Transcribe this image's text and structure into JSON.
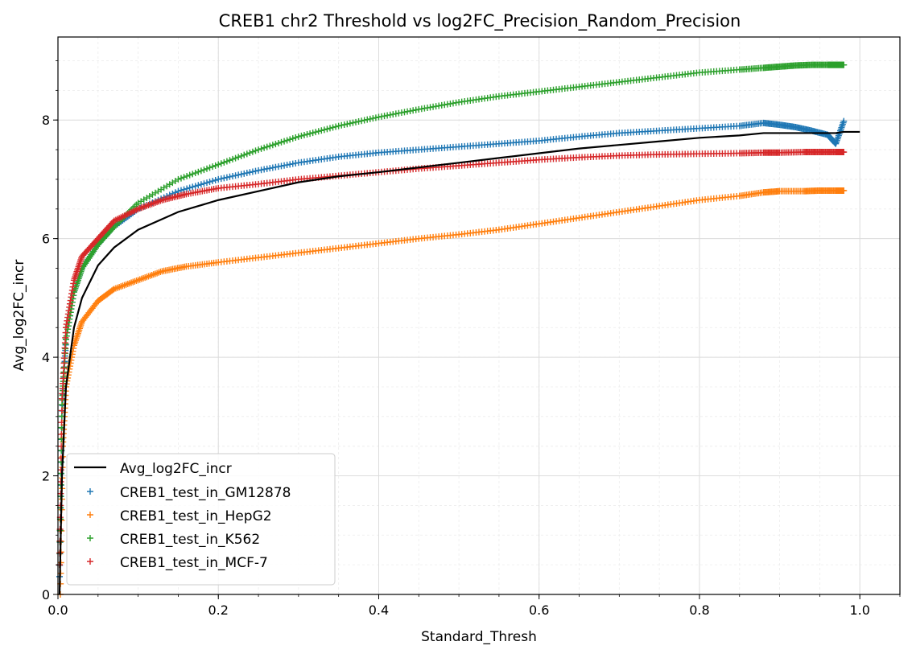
{
  "chart_data": {
    "type": "scatter",
    "title": "CREB1 chr2 Threshold vs log2FC_Precision_Random_Precision",
    "xlabel": "Standard_Thresh",
    "ylabel": "Avg_log2FC_incr",
    "xlim": [
      0.0,
      1.05
    ],
    "ylim": [
      0,
      9.4
    ],
    "xticks": [
      0.0,
      0.2,
      0.4,
      0.6,
      0.8,
      1.0
    ],
    "xtick_labels": [
      "0.0",
      "0.2",
      "0.4",
      "0.6",
      "0.8",
      "1.0"
    ],
    "yticks": [
      0,
      2,
      4,
      6,
      8
    ],
    "ytick_labels": [
      "0",
      "2",
      "4",
      "6",
      "8"
    ],
    "grid": true,
    "minor_grid": true,
    "legend_position": "lower-left",
    "line_series": {
      "name": "Avg_log2FC_incr",
      "color": "#000000",
      "x": [
        0.002,
        0.005,
        0.01,
        0.02,
        0.03,
        0.05,
        0.07,
        0.1,
        0.15,
        0.2,
        0.25,
        0.3,
        0.35,
        0.4,
        0.45,
        0.5,
        0.55,
        0.6,
        0.65,
        0.7,
        0.75,
        0.8,
        0.85,
        0.88,
        0.9,
        0.95,
        0.97,
        0.98,
        0.99,
        1.0
      ],
      "y": [
        0.0,
        2.0,
        3.5,
        4.5,
        5.0,
        5.55,
        5.85,
        6.15,
        6.45,
        6.65,
        6.8,
        6.95,
        7.05,
        7.12,
        7.2,
        7.28,
        7.36,
        7.44,
        7.52,
        7.58,
        7.64,
        7.7,
        7.74,
        7.78,
        7.78,
        7.78,
        7.78,
        7.8,
        7.8,
        7.8
      ]
    },
    "series": [
      {
        "name": "CREB1_test_in_GM12878",
        "color": "#1f77b4",
        "marker": "+",
        "x": [
          0.002,
          0.005,
          0.01,
          0.02,
          0.03,
          0.05,
          0.07,
          0.1,
          0.15,
          0.2,
          0.25,
          0.3,
          0.35,
          0.4,
          0.45,
          0.5,
          0.55,
          0.6,
          0.65,
          0.7,
          0.75,
          0.8,
          0.85,
          0.88,
          0.9,
          0.92,
          0.94,
          0.96,
          0.97,
          0.98
        ],
        "y": [
          0.3,
          3.0,
          4.3,
          5.1,
          5.5,
          5.9,
          6.2,
          6.5,
          6.8,
          7.0,
          7.15,
          7.28,
          7.38,
          7.45,
          7.5,
          7.55,
          7.6,
          7.65,
          7.72,
          7.78,
          7.82,
          7.86,
          7.9,
          7.95,
          7.92,
          7.88,
          7.82,
          7.75,
          7.6,
          7.98
        ]
      },
      {
        "name": "CREB1_test_in_HepG2",
        "color": "#ff7f0e",
        "marker": "+",
        "x": [
          0.003,
          0.006,
          0.01,
          0.02,
          0.03,
          0.05,
          0.07,
          0.1,
          0.13,
          0.16,
          0.2,
          0.25,
          0.3,
          0.35,
          0.4,
          0.45,
          0.5,
          0.55,
          0.6,
          0.65,
          0.7,
          0.75,
          0.8,
          0.85,
          0.88,
          0.9,
          0.93,
          0.95,
          0.97,
          0.98
        ],
        "y": [
          0.0,
          2.5,
          3.5,
          4.2,
          4.6,
          4.95,
          5.15,
          5.3,
          5.45,
          5.53,
          5.6,
          5.68,
          5.76,
          5.84,
          5.92,
          6.0,
          6.07,
          6.15,
          6.25,
          6.35,
          6.45,
          6.55,
          6.65,
          6.72,
          6.78,
          6.8,
          6.8,
          6.81,
          6.81,
          6.81
        ]
      },
      {
        "name": "CREB1_test_in_K562",
        "color": "#2ca02c",
        "marker": "+",
        "x": [
          0.002,
          0.005,
          0.01,
          0.02,
          0.03,
          0.05,
          0.07,
          0.1,
          0.15,
          0.2,
          0.25,
          0.3,
          0.35,
          0.4,
          0.45,
          0.5,
          0.55,
          0.6,
          0.65,
          0.7,
          0.75,
          0.8,
          0.85,
          0.88,
          0.9,
          0.92,
          0.94,
          0.96,
          0.97,
          0.98
        ],
        "y": [
          0.5,
          3.2,
          4.3,
          5.1,
          5.5,
          5.9,
          6.2,
          6.6,
          7.0,
          7.25,
          7.5,
          7.72,
          7.9,
          8.05,
          8.18,
          8.3,
          8.4,
          8.48,
          8.56,
          8.64,
          8.72,
          8.8,
          8.85,
          8.88,
          8.9,
          8.92,
          8.93,
          8.93,
          8.93,
          8.93
        ]
      },
      {
        "name": "CREB1_test_in_MCF-7",
        "color": "#d62728",
        "marker": "+",
        "x": [
          0.002,
          0.005,
          0.01,
          0.02,
          0.03,
          0.05,
          0.07,
          0.1,
          0.13,
          0.16,
          0.2,
          0.25,
          0.3,
          0.35,
          0.4,
          0.45,
          0.5,
          0.55,
          0.6,
          0.65,
          0.7,
          0.75,
          0.8,
          0.85,
          0.88,
          0.9,
          0.93,
          0.95,
          0.97,
          0.98
        ],
        "y": [
          0.5,
          3.3,
          4.5,
          5.3,
          5.7,
          6.0,
          6.3,
          6.5,
          6.65,
          6.75,
          6.85,
          6.92,
          7.0,
          7.06,
          7.12,
          7.18,
          7.23,
          7.28,
          7.33,
          7.37,
          7.4,
          7.42,
          7.43,
          7.44,
          7.45,
          7.45,
          7.46,
          7.46,
          7.46,
          7.46
        ]
      }
    ]
  }
}
